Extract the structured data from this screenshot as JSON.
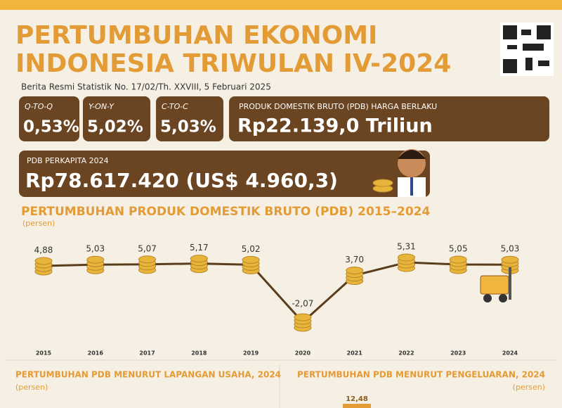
{
  "header": {
    "title_line1": "PERTUMBUHAN EKONOMI",
    "title_line2": "INDONESIA TRIWULAN IV-2024",
    "subtitle": "Berita Resmi Statistik No. 17/02/Th. XXVIII, 5 Februari 2025"
  },
  "stats": [
    {
      "label": "Q-TO-Q",
      "value": "0,53%"
    },
    {
      "label": "Y-ON-Y",
      "value": "5,02%"
    },
    {
      "label": "C-TO-C",
      "value": "5,03%"
    }
  ],
  "pdb": {
    "label": "PRODUK DOMESTIK BRUTO (PDB) HARGA BERLAKU",
    "value": "Rp22.139,0 Triliun"
  },
  "per_capita": {
    "label": "PDB PERKAPITA 2024",
    "value": "Rp78.617.420 (US$ 4.960,3)"
  },
  "chart_data": {
    "type": "line",
    "title": "PERTUMBUHAN PRODUK DOMESTIK BRUTO (PDB) 2015–2024",
    "y_label": "(persen)",
    "categories": [
      "2015",
      "2016",
      "2017",
      "2018",
      "2019",
      "2020",
      "2021",
      "2022",
      "2023",
      "2024"
    ],
    "values": [
      4.88,
      5.03,
      5.07,
      5.17,
      5.02,
      -2.07,
      3.7,
      5.31,
      5.05,
      5.03
    ],
    "value_labels": [
      "4,88",
      "5,03",
      "5,07",
      "5,17",
      "5,02",
      "-2,07",
      "3,70",
      "5,31",
      "5,05",
      "5,03"
    ],
    "color": "#5a3d1c",
    "marker_color": "#e8b53a"
  },
  "sections": [
    {
      "title": "PERTUMBUHAN PDB MENURUT LAPANGAN USAHA, 2024",
      "unit": "(persen)"
    },
    {
      "title": "PERTUMBUHAN PDB MENURUT PENGELUARAN, 2024",
      "unit": "(persen)",
      "first_label": "12,48"
    }
  ]
}
